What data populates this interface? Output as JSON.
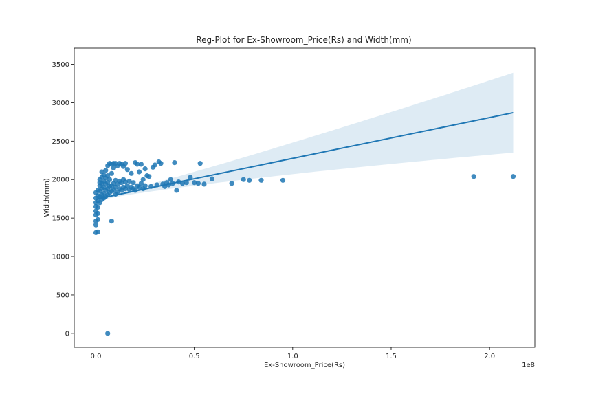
{
  "chart_data": {
    "type": "scatter",
    "title": "Reg-Plot for Ex-Showroom_Price(Rs) and Width(mm)",
    "xlabel": "Ex-Showroom_Price(Rs)",
    "ylabel": "Width(mm)",
    "x_offset_label": "1e8",
    "xlim": [
      -0.11,
      2.23
    ],
    "ylim": [
      -180,
      3710
    ],
    "x_ticks": [
      0.0,
      0.5,
      1.0,
      1.5,
      2.0
    ],
    "x_tick_labels": [
      "0.0",
      "0.5",
      "1.0",
      "1.5",
      "2.0"
    ],
    "y_ticks": [
      0,
      500,
      1000,
      1500,
      2000,
      2500,
      3000,
      3500
    ],
    "y_tick_labels": [
      "0",
      "500",
      "1000",
      "1500",
      "2000",
      "2500",
      "3000",
      "3500"
    ],
    "grid": false,
    "colors": {
      "points": "#1f77b4",
      "line": "#1f77b4",
      "band": "#1f77b4"
    },
    "regression": {
      "x": [
        0.0,
        2.12
      ],
      "y": [
        1745,
        2870
      ],
      "ci_lower": [
        1720,
        2530
      ],
      "ci_upper": [
        1770,
        3570
      ],
      "center_x": 0.1,
      "center_y": 1815
    },
    "points": {
      "x": [
        0.0,
        0.0,
        0.0,
        0.0,
        0.0,
        0.0,
        0.0,
        0.0,
        0.0,
        0.01,
        0.01,
        0.01,
        0.01,
        0.01,
        0.01,
        0.01,
        0.02,
        0.02,
        0.02,
        0.02,
        0.02,
        0.02,
        0.03,
        0.03,
        0.03,
        0.03,
        0.03,
        0.03,
        0.04,
        0.04,
        0.04,
        0.04,
        0.04,
        0.05,
        0.05,
        0.05,
        0.05,
        0.05,
        0.06,
        0.06,
        0.06,
        0.06,
        0.06,
        0.07,
        0.07,
        0.07,
        0.07,
        0.08,
        0.08,
        0.08,
        0.08,
        0.09,
        0.09,
        0.09,
        0.09,
        0.1,
        0.1,
        0.1,
        0.1,
        0.11,
        0.11,
        0.11,
        0.12,
        0.12,
        0.12,
        0.13,
        0.13,
        0.13,
        0.14,
        0.14,
        0.14,
        0.15,
        0.15,
        0.15,
        0.16,
        0.16,
        0.17,
        0.17,
        0.18,
        0.18,
        0.19,
        0.19,
        0.2,
        0.2,
        0.21,
        0.21,
        0.22,
        0.22,
        0.23,
        0.23,
        0.24,
        0.24,
        0.25,
        0.25,
        0.26,
        0.27,
        0.28,
        0.29,
        0.3,
        0.31,
        0.32,
        0.33,
        0.34,
        0.35,
        0.36,
        0.37,
        0.38,
        0.39,
        0.4,
        0.41,
        0.42,
        0.44,
        0.46,
        0.48,
        0.5,
        0.52,
        0.53,
        0.55,
        0.59,
        0.69,
        0.75,
        0.78,
        0.84,
        0.95,
        1.92,
        2.12,
        0.06,
        0.08
      ],
      "y": [
        1310,
        1410,
        1460,
        1540,
        1590,
        1650,
        1700,
        1760,
        1830,
        1320,
        1480,
        1560,
        1640,
        1720,
        1790,
        1860,
        1700,
        1780,
        1850,
        1920,
        1960,
        2000,
        1740,
        1800,
        1880,
        1950,
        2030,
        2100,
        1760,
        1820,
        1900,
        1980,
        2060,
        1780,
        1860,
        1940,
        2020,
        2120,
        1800,
        1880,
        1960,
        2050,
        2180,
        1830,
        1910,
        2000,
        2210,
        1850,
        1920,
        2080,
        2200,
        1870,
        1950,
        2150,
        2210,
        1810,
        1900,
        1990,
        2210,
        1840,
        1940,
        2180,
        1880,
        1980,
        2210,
        1860,
        1960,
        2200,
        1900,
        2000,
        2170,
        1880,
        1970,
        2210,
        1920,
        2130,
        1870,
        1980,
        1900,
        2080,
        1880,
        1960,
        1860,
        2220,
        1920,
        2200,
        1900,
        2100,
        1950,
        2200,
        1880,
        2000,
        1920,
        2140,
        2050,
        2040,
        1910,
        2160,
        2190,
        1930,
        2230,
        2210,
        1940,
        1910,
        1960,
        1930,
        2000,
        1950,
        2220,
        1860,
        1970,
        1950,
        1960,
        2030,
        1960,
        1950,
        2210,
        1940,
        2010,
        1950,
        2000,
        1990,
        1990,
        1990,
        2040,
        2040,
        0,
        1460
      ]
    }
  }
}
